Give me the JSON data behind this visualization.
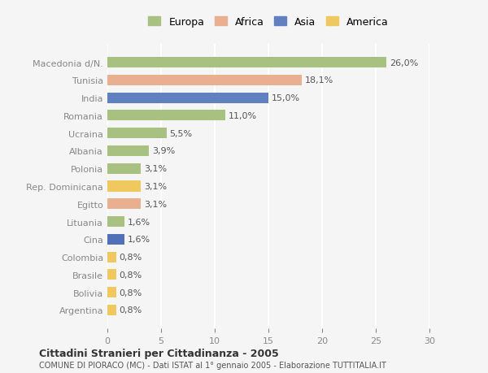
{
  "categories": [
    "Macedonia d/N.",
    "Tunisia",
    "India",
    "Romania",
    "Ucraina",
    "Albania",
    "Polonia",
    "Rep. Dominicana",
    "Egitto",
    "Lituania",
    "Cina",
    "Colombia",
    "Brasile",
    "Bolivia",
    "Argentina"
  ],
  "values": [
    26.0,
    18.1,
    15.0,
    11.0,
    5.5,
    3.9,
    3.1,
    3.1,
    3.1,
    1.6,
    1.6,
    0.8,
    0.8,
    0.8,
    0.8
  ],
  "labels": [
    "26,0%",
    "18,1%",
    "15,0%",
    "11,0%",
    "5,5%",
    "3,9%",
    "3,1%",
    "3,1%",
    "3,1%",
    "1,6%",
    "1,6%",
    "0,8%",
    "0,8%",
    "0,8%",
    "0,8%"
  ],
  "colors": [
    "#a8c080",
    "#e8b090",
    "#6080c0",
    "#a8c080",
    "#a8c080",
    "#a8c080",
    "#a8c080",
    "#f0c860",
    "#e8b090",
    "#a8c080",
    "#5070b8",
    "#f0c860",
    "#f0c860",
    "#f0c860",
    "#f0c860"
  ],
  "continent": [
    "Europa",
    "Africa",
    "Asia",
    "Europa",
    "Europa",
    "Europa",
    "Europa",
    "America",
    "Africa",
    "Europa",
    "Asia",
    "America",
    "America",
    "America",
    "America"
  ],
  "legend_labels": [
    "Europa",
    "Africa",
    "Asia",
    "America"
  ],
  "legend_colors": [
    "#a8c080",
    "#e8b090",
    "#6080c0",
    "#f0c860"
  ],
  "title": "Cittadini Stranieri per Cittadinanza - 2005",
  "subtitle": "COMUNE DI PIORACO (MC) - Dati ISTAT al 1° gennaio 2005 - Elaborazione TUTTITALIA.IT",
  "xlim": [
    0,
    30
  ],
  "xticks": [
    0,
    5,
    10,
    15,
    20,
    25,
    30
  ],
  "background_color": "#f5f5f5",
  "grid_color": "#ffffff",
  "bar_height": 0.6
}
